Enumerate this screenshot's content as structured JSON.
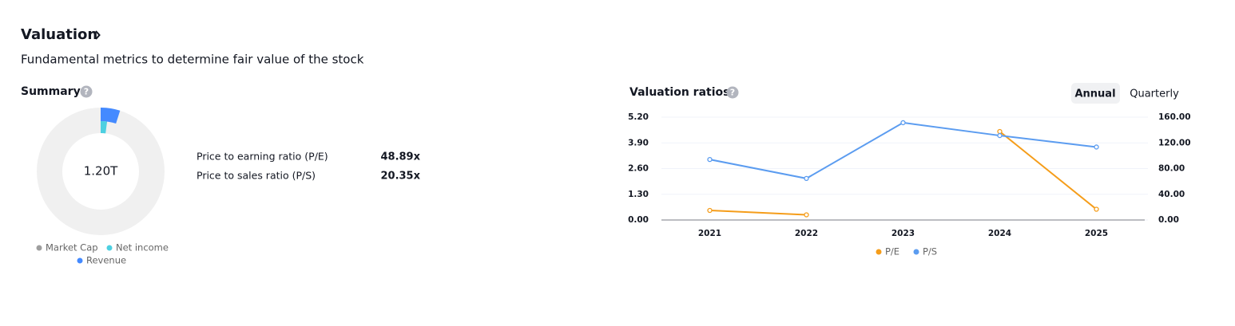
{
  "header": {
    "title": "Valuation",
    "subtitle": "Fundamental metrics to determine fair value of the stock"
  },
  "summary": {
    "title": "Summary",
    "rows": [
      [
        "Price to earning ratio (P/E)",
        "48.89x"
      ],
      [
        "Price to sales ratio (P/S)",
        "20.35x"
      ]
    ]
  },
  "tabs": [
    "Annual",
    "Quarterly"
  ],
  "chart_data": [
    {
      "type": "donut",
      "center_label": "1.20T",
      "categories": [
        "Market Cap",
        "Net income",
        "Revenue"
      ],
      "values": [
        1.2,
        0.0245,
        0.059
      ],
      "colors": [
        "#9e9e9e",
        "#4dd0e1",
        "#448aff"
      ]
    },
    {
      "type": "line",
      "title": "Valuation ratios",
      "categories": [
        "2021",
        "2022",
        "2023",
        "2024",
        "2025"
      ],
      "series": [
        {
          "name": "P/E",
          "color": "#f59d1a",
          "axis": "y2",
          "values": [
            14.9,
            8.1,
            null,
            137.7,
            16.7
          ]
        },
        {
          "name": "P/S",
          "color": "#5b9cf0",
          "values": [
            3.06,
            2.1,
            4.92,
            4.27,
            3.69
          ]
        }
      ],
      "ylim": [
        0,
        5.2
      ],
      "yticks": [
        {
          "value": 0,
          "label": "0.00"
        },
        {
          "value": 1.3,
          "label": "1.30"
        },
        {
          "value": 2.6,
          "label": "2.60"
        },
        {
          "value": 3.9,
          "label": "3.90"
        },
        {
          "value": 5.2,
          "label": "5.20"
        }
      ],
      "y2lim": [
        0,
        160
      ],
      "y2ticks": [
        {
          "value": 0,
          "label": "0.00"
        },
        {
          "value": 40,
          "label": "40.00"
        },
        {
          "value": 80,
          "label": "80.00"
        },
        {
          "value": 120,
          "label": "120.00"
        },
        {
          "value": 160,
          "label": "160.00"
        }
      ],
      "grid": true
    }
  ]
}
